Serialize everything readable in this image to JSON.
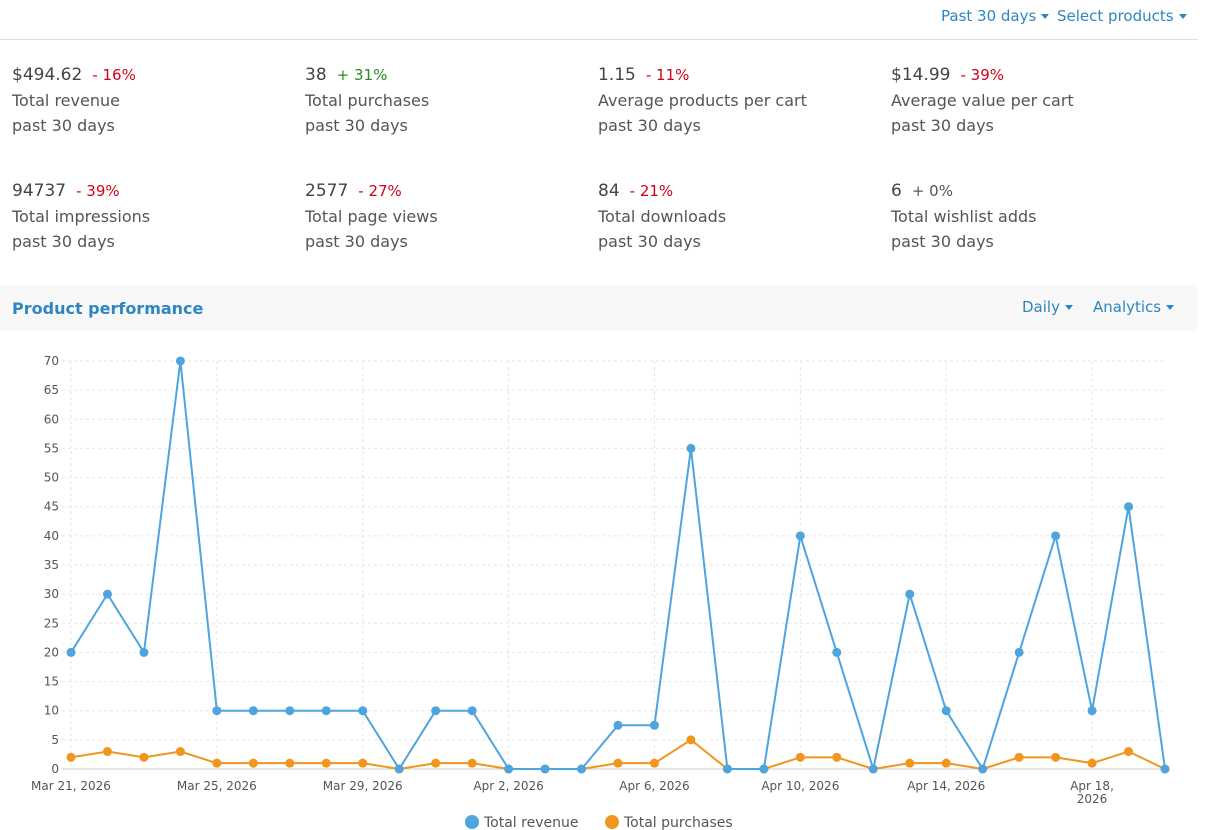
{
  "header": {
    "period_control": "Past 30 days",
    "products_control": "Select products"
  },
  "stats": [
    {
      "value": "$494.62",
      "change": "- 16%",
      "color": "#d0021b",
      "label": "Total revenue",
      "period": "past 30 days"
    },
    {
      "value": "38",
      "change": "+ 31%",
      "color": "#2e8b22",
      "label": "Total purchases",
      "period": "past 30 days"
    },
    {
      "value": "1.15",
      "change": "- 11%",
      "color": "#d0021b",
      "label": "Average products per cart",
      "period": "past 30 days"
    },
    {
      "value": "$14.99",
      "change": "- 39%",
      "color": "#d0021b",
      "label": "Average value per cart",
      "period": "past 30 days"
    },
    {
      "value": "94737",
      "change": "- 39%",
      "color": "#d0021b",
      "label": "Total impressions",
      "period": "past 30 days"
    },
    {
      "value": "2577",
      "change": "- 27%",
      "color": "#d0021b",
      "label": "Total page views",
      "period": "past 30 days"
    },
    {
      "value": "84",
      "change": "- 21%",
      "color": "#d0021b",
      "label": "Total downloads",
      "period": "past 30 days"
    },
    {
      "value": "6",
      "change": "+ 0%",
      "color": "#555555",
      "label": "Total wishlist adds",
      "period": "past 30 days"
    }
  ],
  "section": {
    "title": "Product performance",
    "interval_control": "Daily",
    "view_control": "Analytics"
  },
  "chart_data": {
    "type": "line",
    "categories": [
      "2026-03-21",
      "2026-03-22",
      "2026-03-23",
      "2026-03-24",
      "2026-03-25",
      "2026-03-26",
      "2026-03-27",
      "2026-03-28",
      "2026-03-29",
      "2026-03-30",
      "2026-03-31",
      "2026-04-01",
      "2026-04-02",
      "2026-04-03",
      "2026-04-04",
      "2026-04-05",
      "2026-04-06",
      "2026-04-07",
      "2026-04-08",
      "2026-04-09",
      "2026-04-10",
      "2026-04-11",
      "2026-04-12",
      "2026-04-13",
      "2026-04-14",
      "2026-04-15",
      "2026-04-16",
      "2026-04-17",
      "2026-04-18",
      "2026-04-19",
      "2026-04-20"
    ],
    "xticks": [
      {
        "value": "2026-03-21",
        "label": "Mar 21, 2026"
      },
      {
        "value": "2026-03-25",
        "label": "Mar 25, 2026"
      },
      {
        "value": "2026-03-29",
        "label": "Mar 29, 2026"
      },
      {
        "value": "2026-04-02",
        "label": "Apr 2, 2026"
      },
      {
        "value": "2026-04-06",
        "label": "Apr 6, 2026"
      },
      {
        "value": "2026-04-10",
        "label": "Apr 10, 2026"
      },
      {
        "value": "2026-04-14",
        "label": "Apr 14, 2026"
      },
      {
        "value": "2026-04-18",
        "label": "Apr 18, 2026"
      }
    ],
    "ylim": [
      0,
      70
    ],
    "yticks": [
      0,
      5,
      10,
      15,
      20,
      25,
      30,
      35,
      40,
      45,
      50,
      55,
      60,
      65,
      70
    ],
    "grid": true,
    "series": [
      {
        "name": "Total revenue",
        "color": "#4ea4de",
        "values": [
          20,
          30,
          20,
          70,
          10,
          10,
          10,
          10,
          10,
          0,
          10,
          10,
          0,
          0,
          0,
          7.5,
          7.5,
          55,
          0,
          0,
          40,
          20,
          0,
          30,
          10,
          0,
          20,
          40,
          10,
          45,
          0
        ]
      },
      {
        "name": "Total purchases",
        "color": "#f0961c",
        "values": [
          2,
          3,
          2,
          3,
          1,
          1,
          1,
          1,
          1,
          0,
          1,
          1,
          0,
          0,
          0,
          1,
          1,
          5,
          0,
          0,
          2,
          2,
          0,
          1,
          1,
          0,
          2,
          2,
          1,
          3,
          0
        ]
      }
    ]
  }
}
